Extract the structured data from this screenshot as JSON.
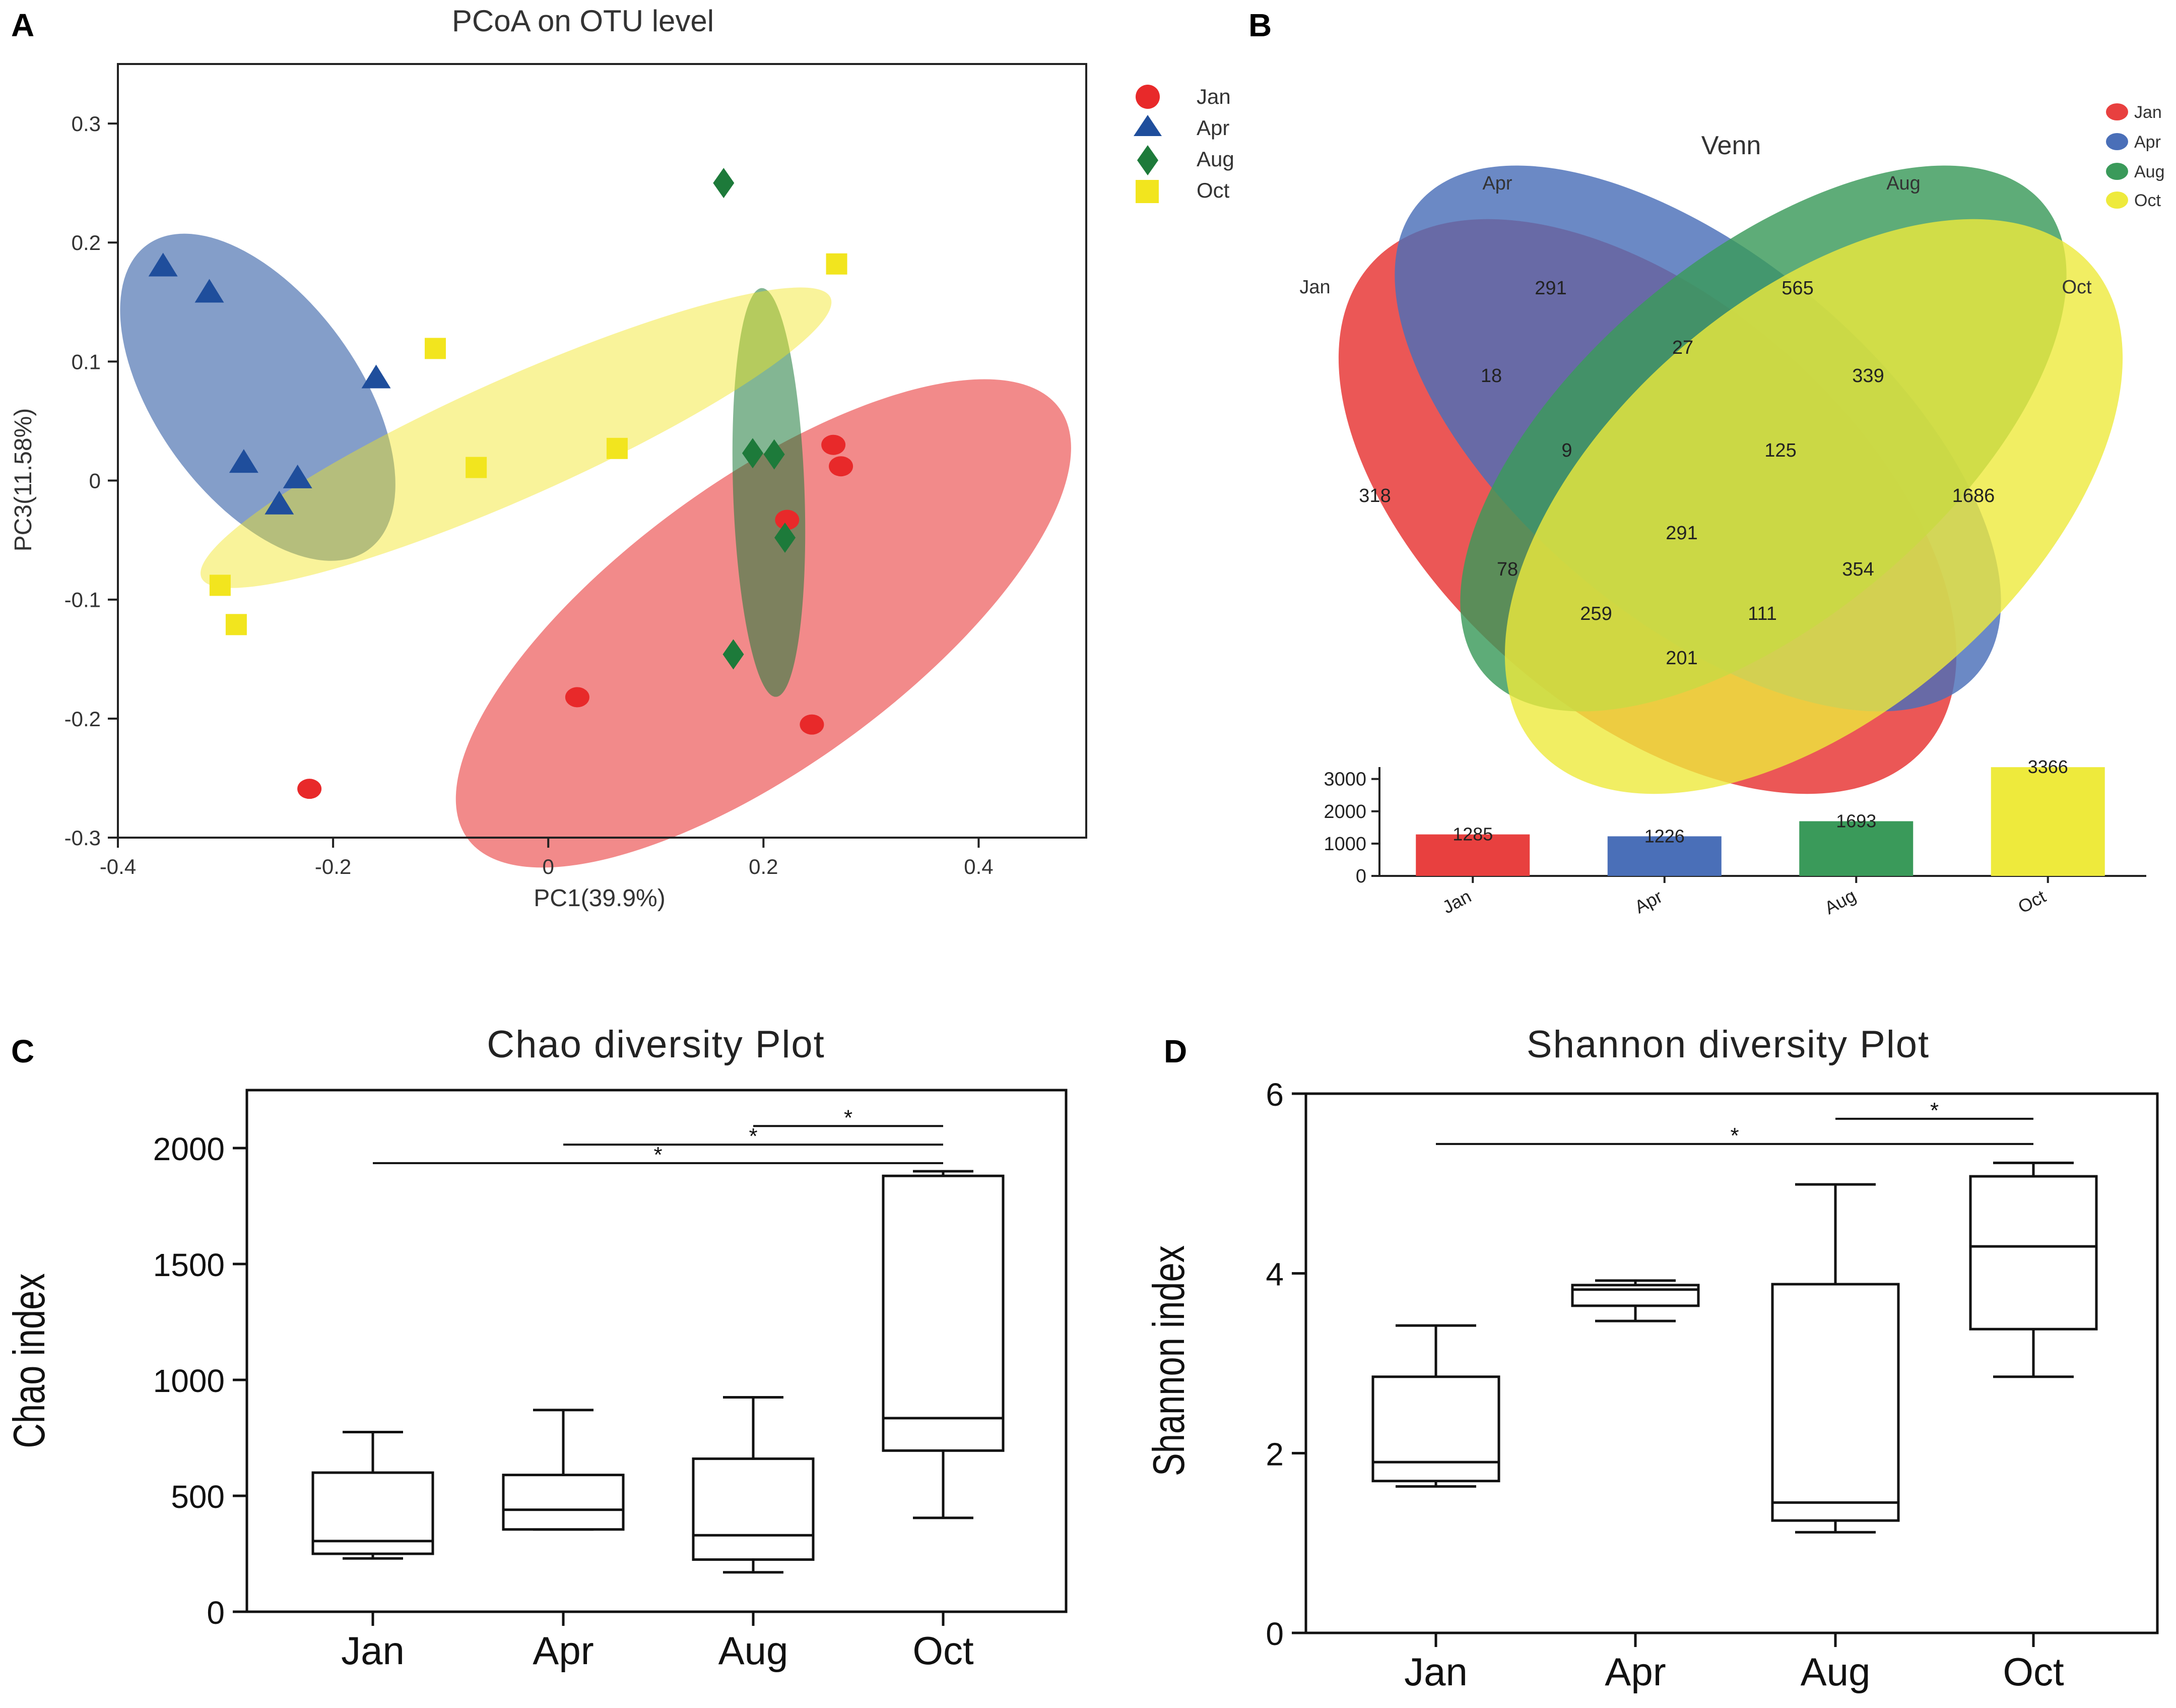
{
  "colors": {
    "jan": "#e8292a",
    "apr": "#1f4e9c",
    "aug": "#1d7a3a",
    "oct": "#f2e51e",
    "venn_jan": "#e8403f",
    "venn_apr": "#4a6fb8",
    "venn_aug": "#3a9a5a",
    "venn_oct": "#eeea3c"
  },
  "panels": {
    "a": "A",
    "b": "B",
    "c": "C",
    "d": "D"
  },
  "chart_data": [
    {
      "id": "pcoa",
      "type": "scatter",
      "title": "PCoA on OTU level",
      "xlabel": "PC1(39.9%)",
      "ylabel": "PC3(11.58%)",
      "xlim": [
        -0.4,
        0.5
      ],
      "ylim": [
        -0.3,
        0.35
      ],
      "xticks": [
        -0.4,
        -0.2,
        0,
        0.2,
        0.4
      ],
      "xtick_labels": [
        "-0.4",
        "-0.2",
        "0",
        "0.2",
        "0.4"
      ],
      "yticks": [
        -0.3,
        -0.2,
        -0.1,
        0,
        0.1,
        0.2,
        0.3
      ],
      "ytick_labels": [
        "-0.3",
        "-0.2",
        "-0.1",
        "0",
        "0.1",
        "0.2",
        "0.3"
      ],
      "legend_position": "top-right",
      "series": [
        {
          "name": "Jan",
          "marker": "circle",
          "ellipse": {
            "cx": 0.2,
            "cy": -0.12,
            "rx": 0.34,
            "ry": 0.12,
            "angle_deg": 36
          },
          "points": [
            [
              0.265,
              0.03
            ],
            [
              0.272,
              0.012
            ],
            [
              0.222,
              -0.033
            ],
            [
              0.027,
              -0.182
            ],
            [
              0.245,
              -0.205
            ],
            [
              -0.222,
              -0.259
            ]
          ]
        },
        {
          "name": "Apr",
          "marker": "triangle",
          "ellipse": {
            "cx": -0.27,
            "cy": 0.07,
            "rx": 0.175,
            "ry": 0.085,
            "angle_deg": -54
          },
          "points": [
            [
              -0.358,
              0.18
            ],
            [
              -0.315,
              0.158
            ],
            [
              -0.16,
              0.086
            ],
            [
              -0.283,
              0.015
            ],
            [
              -0.233,
              0.002
            ],
            [
              -0.25,
              -0.02
            ]
          ]
        },
        {
          "name": "Aug",
          "marker": "diamond",
          "ellipse": {
            "cx": 0.205,
            "cy": -0.01,
            "rx": 0.19,
            "ry": 0.03,
            "angle_deg": -88
          },
          "points": [
            [
              0.163,
              0.25
            ],
            [
              0.19,
              0.023
            ],
            [
              0.21,
              0.022
            ],
            [
              0.22,
              -0.048
            ],
            [
              0.172,
              -0.146
            ]
          ]
        },
        {
          "name": "Oct",
          "marker": "square",
          "ellipse": {
            "cx": -0.03,
            "cy": 0.036,
            "rx": 0.32,
            "ry": 0.05,
            "angle_deg": 24
          },
          "points": [
            [
              0.268,
              0.182
            ],
            [
              -0.105,
              0.111
            ],
            [
              0.064,
              0.027
            ],
            [
              -0.067,
              0.011
            ],
            [
              -0.305,
              -0.088
            ],
            [
              -0.29,
              -0.121
            ]
          ]
        }
      ]
    },
    {
      "id": "venn",
      "type": "venn",
      "title": "Venn",
      "sets": [
        "Jan",
        "Apr",
        "Aug",
        "Oct"
      ],
      "region_values": {
        "jan_only": "318",
        "apr_only": "291",
        "aug_only": "565",
        "oct_only": "1686",
        "jan_apr": "18",
        "apr_aug": "27",
        "aug_oct": "339",
        "jan_apr_aug": "9",
        "apr_aug_oct": "125",
        "all": "291",
        "jan_aug": "78",
        "apr_oct": "354",
        "jan_aug_oct": "259",
        "jan_apr_oct": "111",
        "jan_oct": "201"
      },
      "legend_position": "top-right"
    },
    {
      "id": "venn_totals",
      "type": "bar",
      "categories": [
        "Jan",
        "Apr",
        "Aug",
        "Oct"
      ],
      "values": [
        1285,
        1226,
        1693,
        3366
      ],
      "value_labels": [
        "1285",
        "1226",
        "1693",
        "3366"
      ],
      "ylim": [
        0,
        3400
      ],
      "yticks": [
        0,
        1000,
        2000,
        3000
      ],
      "ytick_labels": [
        "0",
        "1000",
        "2000",
        "3000"
      ]
    },
    {
      "id": "chao",
      "type": "box",
      "title": "Chao diversity Plot",
      "ylabel": "Chao index",
      "categories": [
        "Jan",
        "Apr",
        "Aug",
        "Oct"
      ],
      "ylim": [
        0,
        2250
      ],
      "yticks": [
        0,
        500,
        1000,
        1500,
        2000
      ],
      "ytick_labels": [
        "0",
        "500",
        "1000",
        "1500",
        "2000"
      ],
      "boxes": [
        {
          "min": 230,
          "q1": 250,
          "median": 305,
          "q3": 600,
          "max": 775
        },
        {
          "min": 355,
          "q1": 355,
          "median": 440,
          "q3": 590,
          "max": 870
        },
        {
          "min": 170,
          "q1": 225,
          "median": 330,
          "q3": 660,
          "max": 925
        },
        {
          "min": 405,
          "q1": 695,
          "median": 835,
          "q3": 1880,
          "max": 1900
        }
      ],
      "significance": [
        {
          "from": "Jan",
          "to": "Oct",
          "y": 1935,
          "label": "*"
        },
        {
          "from": "Apr",
          "to": "Oct",
          "y": 2015,
          "label": "*"
        },
        {
          "from": "Aug",
          "to": "Oct",
          "y": 2095,
          "label": "*"
        }
      ]
    },
    {
      "id": "shannon",
      "type": "box",
      "title": "Shannon diversity Plot",
      "ylabel": "Shannon index",
      "categories": [
        "Jan",
        "Apr",
        "Aug",
        "Oct"
      ],
      "ylim": [
        0,
        6
      ],
      "yticks": [
        0,
        2,
        4,
        6
      ],
      "ytick_labels": [
        "0",
        "2",
        "4",
        "6"
      ],
      "boxes": [
        {
          "min": 1.63,
          "q1": 1.69,
          "median": 1.9,
          "q3": 2.85,
          "max": 3.42
        },
        {
          "min": 3.47,
          "q1": 3.64,
          "median": 3.82,
          "q3": 3.87,
          "max": 3.92
        },
        {
          "min": 1.12,
          "q1": 1.25,
          "median": 1.45,
          "q3": 3.88,
          "max": 4.99
        },
        {
          "min": 2.85,
          "q1": 3.38,
          "median": 4.3,
          "q3": 5.08,
          "max": 5.23
        }
      ],
      "significance": [
        {
          "from": "Jan",
          "to": "Oct",
          "y": 5.44,
          "label": "*"
        },
        {
          "from": "Aug",
          "to": "Oct",
          "y": 5.72,
          "label": "*"
        }
      ]
    }
  ]
}
